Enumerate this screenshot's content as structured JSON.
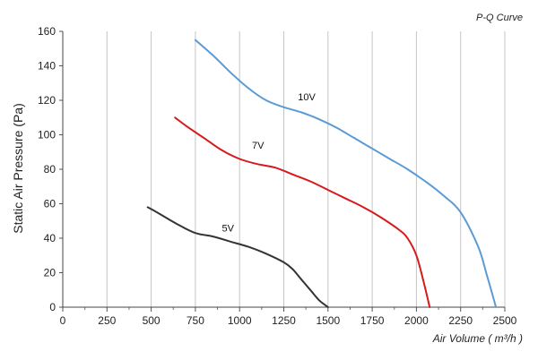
{
  "chart_data": {
    "type": "line",
    "title": "P-Q Curve",
    "xlabel": "Air Volume ( m³/h )",
    "ylabel": "Static Air Pressure  (Pa)",
    "xlim": [
      0,
      2500
    ],
    "ylim": [
      0,
      160
    ],
    "xticks": [
      0,
      250,
      500,
      750,
      1000,
      1250,
      1500,
      1750,
      2000,
      2250,
      2500
    ],
    "yticks": [
      0,
      20,
      40,
      60,
      80,
      100,
      120,
      140,
      160
    ],
    "grid": "vertical",
    "legend": "none",
    "series": [
      {
        "name": "10V",
        "color": "#5b9bd5",
        "x": [
          750,
          850,
          950,
          1050,
          1150,
          1250,
          1350,
          1450,
          1550,
          1650,
          1750,
          1850,
          1950,
          2050,
          2150,
          2250,
          2350,
          2400,
          2450
        ],
        "y": [
          155,
          146,
          136,
          127,
          120,
          116,
          113,
          109,
          104,
          98,
          92,
          86,
          80,
          73,
          65,
          55,
          35,
          18,
          0
        ]
      },
      {
        "name": "7V",
        "color": "#d7191c",
        "x": [
          635,
          700,
          800,
          900,
          1000,
          1100,
          1200,
          1300,
          1400,
          1500,
          1600,
          1700,
          1800,
          1900,
          1950,
          2000,
          2040,
          2075
        ],
        "y": [
          110,
          105,
          98,
          91,
          86,
          83,
          81,
          77,
          73,
          68,
          63,
          58,
          52,
          45,
          40,
          30,
          15,
          0
        ]
      },
      {
        "name": "5V",
        "color": "#333333",
        "x": [
          480,
          550,
          650,
          750,
          850,
          950,
          1050,
          1150,
          1250,
          1300,
          1350,
          1400,
          1450,
          1500
        ],
        "y": [
          58,
          54,
          48,
          43,
          41,
          38,
          35,
          31,
          26,
          22,
          16,
          10,
          4,
          0
        ]
      }
    ],
    "series_labels": [
      {
        "text": "10V",
        "x": 1330,
        "y": 120
      },
      {
        "text": "7V",
        "x": 1070,
        "y": 92
      },
      {
        "text": "5V",
        "x": 900,
        "y": 44
      }
    ]
  }
}
